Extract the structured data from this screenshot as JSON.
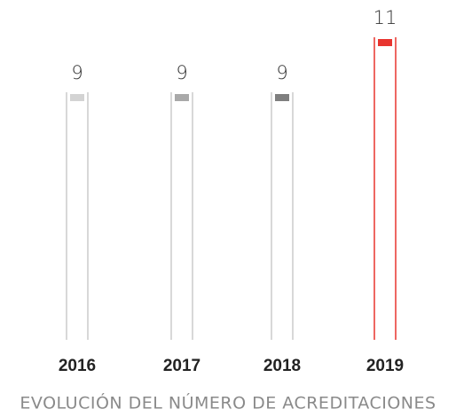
{
  "chart_data": {
    "type": "bar",
    "title": "EVOLUCIÓN DEL NÚMERO DE ACREDITACIONES",
    "categories": [
      "2016",
      "2017",
      "2018",
      "2019"
    ],
    "values": [
      9,
      9,
      9,
      11
    ],
    "colors": [
      "#d3d3d3",
      "#a9a9a9",
      "#7f7f7f",
      "#e8352f"
    ],
    "outline_colors": [
      "#cccccc",
      "#cccccc",
      "#cccccc",
      "#e8352f"
    ]
  }
}
